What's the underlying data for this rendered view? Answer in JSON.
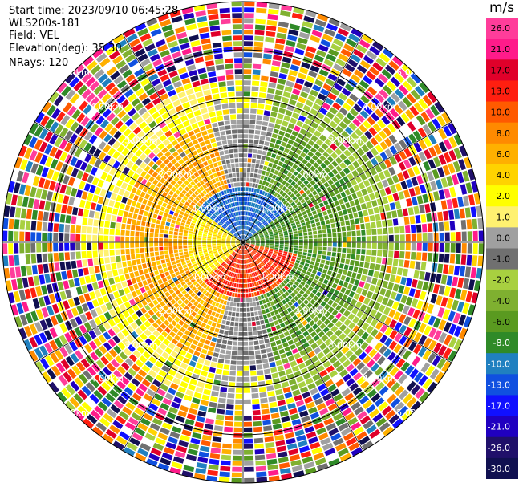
{
  "header": {
    "start_time": "Start time: 2023/09/10 06:45:28",
    "instrument": "WLS200s-181",
    "field": "Field: VEL",
    "elevation": "Elevation(deg): 35.30",
    "nrays": "NRays: 120"
  },
  "colorbar": {
    "unit": "m/s",
    "ticks": [
      "26.0",
      "21.0",
      "17.0",
      "13.0",
      "10.0",
      "8.0",
      "6.0",
      "4.0",
      "2.0",
      "1.0",
      "0.0",
      "-1.0",
      "-2.0",
      "-4.0",
      "-6.0",
      "-8.0",
      "-10.0",
      "-13.0",
      "-17.0",
      "-21.0",
      "-26.0",
      "-30.0"
    ],
    "colors": [
      "#ff3d9a",
      "#ff1b8a",
      "#e0002a",
      "#ff1f10",
      "#ff5a00",
      "#ff8a00",
      "#ffb000",
      "#ffd300",
      "#ffff00",
      "#fff170",
      "#a0a0a0",
      "#707070",
      "#a8d040",
      "#7fb030",
      "#5a9a20",
      "#2f8a28",
      "#2080c0",
      "#1050e0",
      "#1010ff",
      "#2000c0",
      "#20106a",
      "#101050"
    ]
  },
  "chart_data": {
    "type": "ppi",
    "field": "VEL",
    "units": "m/s",
    "nrays": 120,
    "elevation_deg": 35.3,
    "range_rings": [
      "1.00km",
      "2.00km",
      "3.00km",
      "4.00km",
      "5.00km"
    ],
    "velocity_pattern": {
      "left_half": "positive (yellow/orange, 2 to 8 m/s)",
      "right_half": "negative (green, -2 to -8 m/s)",
      "near_center_south": "orange/red",
      "near_center_north": "blue",
      "outer_ranges": "noise"
    }
  }
}
